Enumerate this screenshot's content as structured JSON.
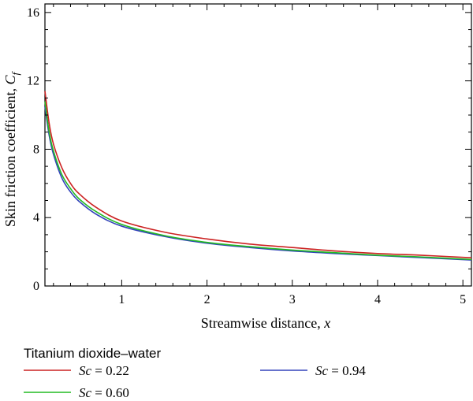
{
  "chart_data": {
    "type": "line",
    "xlabel": "Streamwise distance, ",
    "xlabel_var": "x",
    "ylabel": "Skin friction coefficient, ",
    "ylabel_var": "C",
    "ylabel_sub": "f",
    "xlim": [
      0.1,
      5.1
    ],
    "ylim": [
      0,
      16.5
    ],
    "x_ticks": [
      1,
      2,
      3,
      4,
      5
    ],
    "x_tick_labels": [
      "1",
      "2",
      "3",
      "4",
      "5"
    ],
    "y_ticks": [
      0,
      4,
      8,
      12,
      16
    ],
    "y_tick_labels": [
      "0",
      "4",
      "8",
      "12",
      "16"
    ],
    "grid": false,
    "legend_title": "Titanium dioxide–water",
    "legend_placement": "below",
    "series": [
      {
        "name": "Sc = 0.22",
        "name_var": "Sc",
        "name_value": " = 0.22",
        "color": "#cc2222",
        "x": [
          0.1,
          0.15,
          0.2,
          0.3,
          0.4,
          0.5,
          0.7,
          1.0,
          1.5,
          2.0,
          2.5,
          3.0,
          3.5,
          4.0,
          4.5,
          5.1
        ],
        "y": [
          11.4,
          9.5,
          8.3,
          6.9,
          6.0,
          5.4,
          4.6,
          3.8,
          3.15,
          2.75,
          2.45,
          2.25,
          2.05,
          1.9,
          1.8,
          1.65
        ]
      },
      {
        "name": "Sc = 0.60",
        "name_var": "Sc",
        "name_value": " = 0.60",
        "color": "#22bb22",
        "x": [
          0.1,
          0.15,
          0.2,
          0.3,
          0.4,
          0.5,
          0.7,
          1.0,
          1.5,
          2.0,
          2.5,
          3.0,
          3.5,
          4.0,
          4.5,
          5.1
        ],
        "y": [
          10.8,
          9.0,
          7.9,
          6.5,
          5.7,
          5.1,
          4.35,
          3.6,
          2.95,
          2.55,
          2.3,
          2.1,
          1.95,
          1.8,
          1.7,
          1.55
        ]
      },
      {
        "name": "Sc = 0.94",
        "name_var": "Sc",
        "name_value": " = 0.94",
        "color": "#3344bb",
        "x": [
          0.1,
          0.15,
          0.2,
          0.3,
          0.4,
          0.5,
          0.7,
          1.0,
          1.5,
          2.0,
          2.5,
          3.0,
          3.5,
          4.0,
          4.5,
          5.1
        ],
        "y": [
          10.5,
          8.8,
          7.7,
          6.3,
          5.5,
          4.95,
          4.2,
          3.5,
          2.9,
          2.5,
          2.25,
          2.05,
          1.9,
          1.78,
          1.66,
          1.52
        ]
      }
    ]
  }
}
